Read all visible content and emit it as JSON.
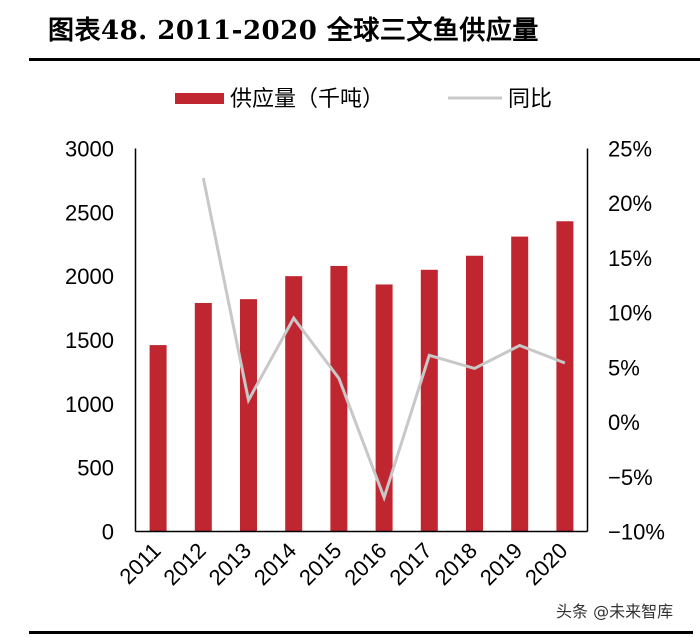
{
  "header": {
    "title": "图表48. 2011-2020 全球三文鱼供应量"
  },
  "watermark": "头条 @未来智库",
  "colors": {
    "bar": "#C0262F",
    "line": "#C8C8C8",
    "axis": "#000000"
  },
  "chart_data": {
    "type": "bar",
    "title": "2011-2020 全球三文鱼供应量",
    "xlabel": "",
    "ylabel": "",
    "categories": [
      "2011",
      "2012",
      "2013",
      "2014",
      "2015",
      "2016",
      "2017",
      "2018",
      "2019",
      "2020"
    ],
    "series": [
      {
        "name": "供应量（千吨）",
        "type": "bar",
        "axis": "left",
        "values": [
          1460,
          1790,
          1820,
          2000,
          2080,
          1935,
          2050,
          2160,
          2310,
          2430
        ]
      },
      {
        "name": "同比",
        "type": "line",
        "axis": "right",
        "values": [
          null,
          22.3,
          2.0,
          9.5,
          4.0,
          -6.9,
          6.1,
          4.9,
          7.0,
          5.4
        ]
      }
    ],
    "ylim": [
      0,
      3000
    ],
    "y2lim": [
      -10,
      25
    ],
    "yticks": [
      "0",
      "500",
      "1000",
      "1500",
      "2000",
      "2500",
      "3000"
    ],
    "ytick_values": [
      0,
      500,
      1000,
      1500,
      2000,
      2500,
      3000
    ],
    "y2ticks": [
      "−10%",
      "−5%",
      "0%",
      "5%",
      "10%",
      "15%",
      "20%",
      "25%"
    ],
    "y2tick_values": [
      -10,
      -5,
      0,
      5,
      10,
      15,
      20,
      25
    ],
    "grid": false,
    "legend": {
      "position": "top-center",
      "items": [
        "供应量（千吨）",
        "同比"
      ]
    }
  }
}
